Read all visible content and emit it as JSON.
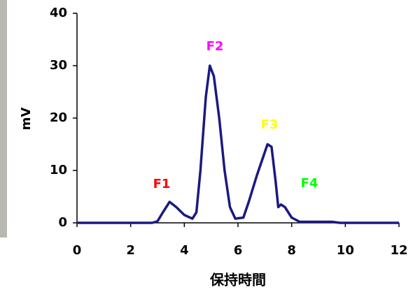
{
  "chart_data": {
    "type": "line",
    "x_label": "保持時間",
    "y_label": "mV",
    "x": [
      0,
      2.8,
      3.0,
      3.2,
      3.45,
      3.7,
      4.0,
      4.3,
      4.45,
      4.6,
      4.8,
      4.95,
      5.1,
      5.3,
      5.5,
      5.7,
      5.9,
      6.2,
      6.4,
      6.7,
      6.9,
      7.1,
      7.25,
      7.4,
      7.5,
      7.6,
      7.75,
      8.0,
      8.3,
      8.6,
      9.5,
      9.8,
      12
    ],
    "series": [
      {
        "color": "#1a1a80",
        "values": [
          0,
          0,
          0.3,
          2,
          4,
          3,
          1.5,
          0.8,
          2,
          10,
          24,
          30,
          28,
          20,
          10,
          3,
          0.8,
          1,
          4,
          9,
          12,
          15,
          14.5,
          8,
          3,
          3.5,
          3,
          1,
          0.2,
          0.2,
          0.2,
          0,
          0
        ]
      }
    ],
    "xlim": [
      0,
      12
    ],
    "xticks": [
      0,
      2,
      4,
      6,
      8,
      10,
      12
    ],
    "ylim": [
      0,
      40
    ],
    "yticks": [
      0,
      10,
      20,
      30,
      40
    ],
    "annotations": [
      {
        "text": "F1",
        "color": "#ff0000"
      },
      {
        "text": "F2",
        "color": "#ff00ff"
      },
      {
        "text": "F3",
        "color": "#ffff00"
      },
      {
        "text": "F4",
        "color": "#00ff00"
      }
    ]
  }
}
